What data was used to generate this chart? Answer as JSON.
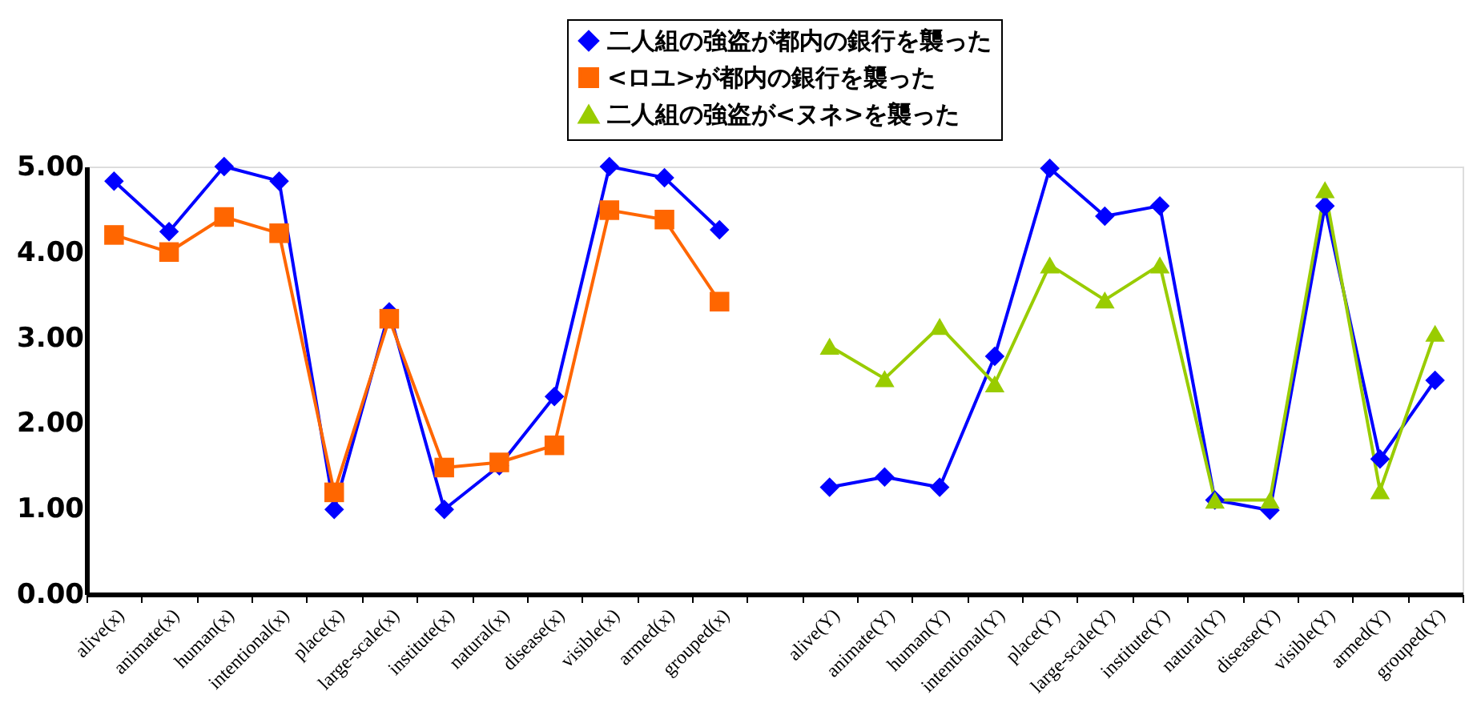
{
  "chart_data": {
    "type": "line",
    "categories": [
      "alive(x)",
      "animate(x)",
      "human(x)",
      "intentional(x)",
      "place(x)",
      "large-scale(x)",
      "institute(x)",
      "natural(x)",
      "disease(x)",
      "visible(x)",
      "armed(x)",
      "grouped(x)",
      null,
      "alive(Y)",
      "animate(Y)",
      "human(Y)",
      "intentional(Y)",
      "place(Y)",
      "large-scale(Y)",
      "institute(Y)",
      "natural(Y)",
      "disease(Y)",
      "visible(Y)",
      "armed(Y)",
      "grouped(Y)"
    ],
    "series": [
      {
        "name": "二人組の強盗が都内の銀行を襲った",
        "color": "#0000ff",
        "marker": "diamond",
        "values": [
          4.83,
          4.24,
          5.0,
          4.83,
          0.99,
          3.3,
          0.99,
          1.5,
          2.31,
          5.0,
          4.87,
          4.26,
          null,
          1.25,
          1.37,
          1.25,
          2.78,
          4.98,
          4.42,
          4.54,
          1.1,
          0.98,
          4.54,
          1.58,
          2.5
        ]
      },
      {
        "name": "<ロユ>が都内の銀行を襲った",
        "color": "#ff6600",
        "marker": "square",
        "values": [
          4.2,
          4.0,
          4.41,
          4.22,
          1.19,
          3.22,
          1.48,
          1.54,
          1.74,
          4.49,
          4.38,
          3.42,
          null,
          null,
          null,
          null,
          null,
          null,
          null,
          null,
          null,
          null,
          null,
          null,
          null
        ]
      },
      {
        "name": "二人組の強盗が<ヌネ>を襲った",
        "color": "#99cc00",
        "marker": "triangle",
        "values": [
          null,
          null,
          null,
          null,
          null,
          null,
          null,
          null,
          null,
          null,
          null,
          null,
          null,
          2.9,
          2.52,
          3.13,
          2.46,
          3.85,
          3.44,
          3.85,
          1.1,
          1.1,
          4.73,
          1.21,
          3.05
        ]
      }
    ],
    "ylim": [
      0,
      5
    ],
    "yticks": [
      {
        "value": 0,
        "label": "0.00"
      },
      {
        "value": 1,
        "label": "1.00"
      },
      {
        "value": 2,
        "label": "2.00"
      },
      {
        "value": 3,
        "label": "3.00"
      },
      {
        "value": 4,
        "label": "4.00"
      },
      {
        "value": 5,
        "label": "5.00"
      }
    ],
    "legend": "top right",
    "grid": false
  }
}
